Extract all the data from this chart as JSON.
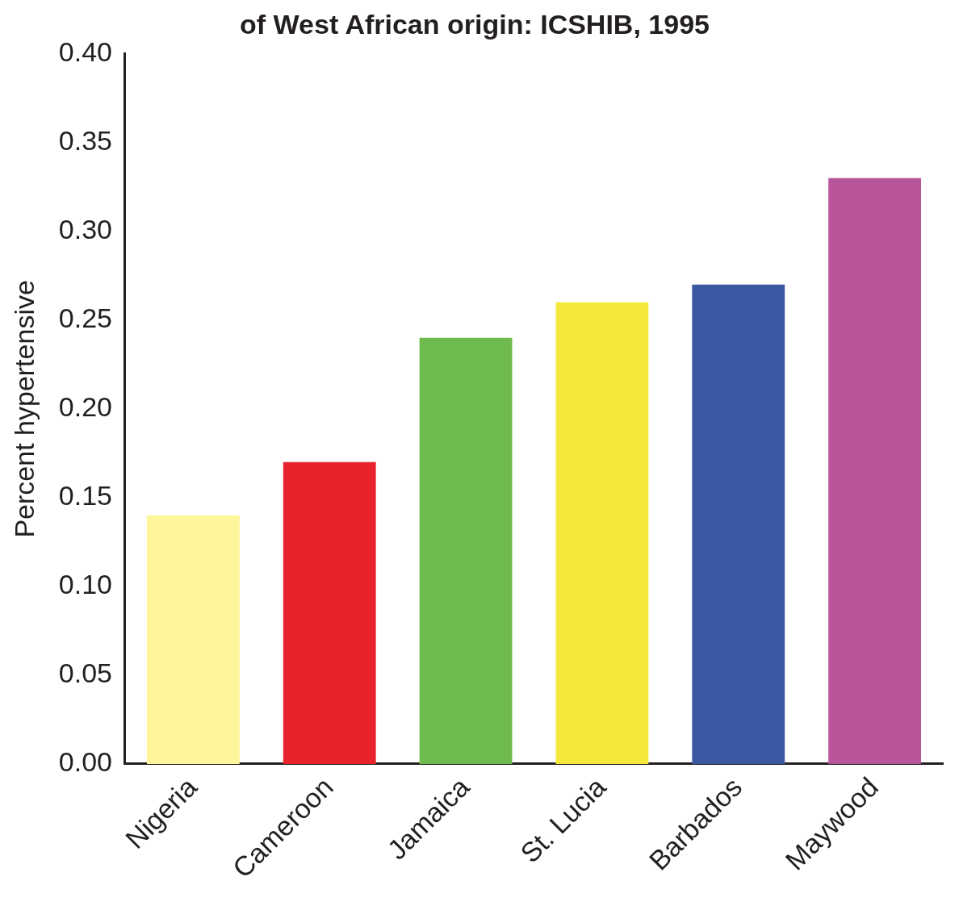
{
  "chart_data": {
    "type": "bar",
    "title": "of West African origin: ICSHIB, 1995",
    "ylabel": "Percent hypertensive",
    "categories": [
      "Nigeria",
      "Cameroon",
      "Jamaica",
      "St. Lucia",
      "Barbados",
      "Maywood"
    ],
    "values": [
      0.14,
      0.17,
      0.24,
      0.26,
      0.27,
      0.33
    ],
    "colors": [
      "#fff59a",
      "#e8232c",
      "#6fba4c",
      "#f5e83a",
      "#3b58a3",
      "#b9559b"
    ],
    "ylim": [
      0,
      0.4
    ],
    "yticks": [
      {
        "value": 0,
        "label": "0.00"
      },
      {
        "value": 0.05,
        "label": "0.05"
      },
      {
        "value": 0.1,
        "label": "0.10"
      },
      {
        "value": 0.15,
        "label": "0.15"
      },
      {
        "value": 0.2,
        "label": "0.20"
      },
      {
        "value": 0.25,
        "label": "0.25"
      },
      {
        "value": 0.3,
        "label": "0.30"
      },
      {
        "value": 0.35,
        "label": "0.35"
      },
      {
        "value": 0.4,
        "label": "0.40"
      }
    ],
    "grid": false,
    "legend": false
  }
}
